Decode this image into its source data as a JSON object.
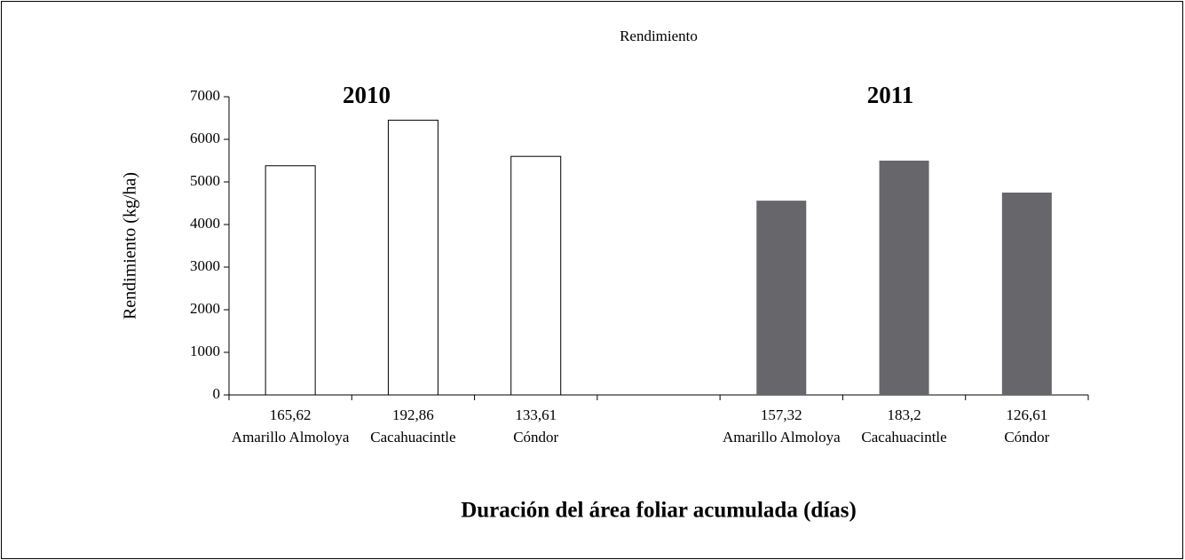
{
  "chart_data": {
    "type": "bar",
    "title": "Rendimiento",
    "y_label": "Rendimiento (kg/ha)",
    "x_label": "Duración del área foliar acumulada (días)",
    "annotations": [
      "2010",
      "2011"
    ],
    "categories": [
      [
        "165,62",
        "Amarillo Almoloya"
      ],
      [
        "192,86",
        "Cacahuacintle"
      ],
      [
        "133,61",
        "Cóndor"
      ],
      null,
      [
        "157,32",
        "Amarillo Almoloya"
      ],
      [
        "183,2",
        "Cacahuacintle"
      ],
      [
        "126,61",
        "Cóndor"
      ]
    ],
    "series": [
      {
        "color": "#ffffff",
        "values": [
          5380,
          6450,
          5600,
          null,
          null,
          null,
          null
        ]
      },
      {
        "color": "#67676b",
        "values": [
          null,
          null,
          null,
          null,
          4560,
          5500,
          4750
        ]
      }
    ],
    "ylim": [
      0,
      7000
    ],
    "yticks": [
      0,
      1000,
      2000,
      3000,
      4000,
      5000,
      6000,
      7000
    ]
  }
}
